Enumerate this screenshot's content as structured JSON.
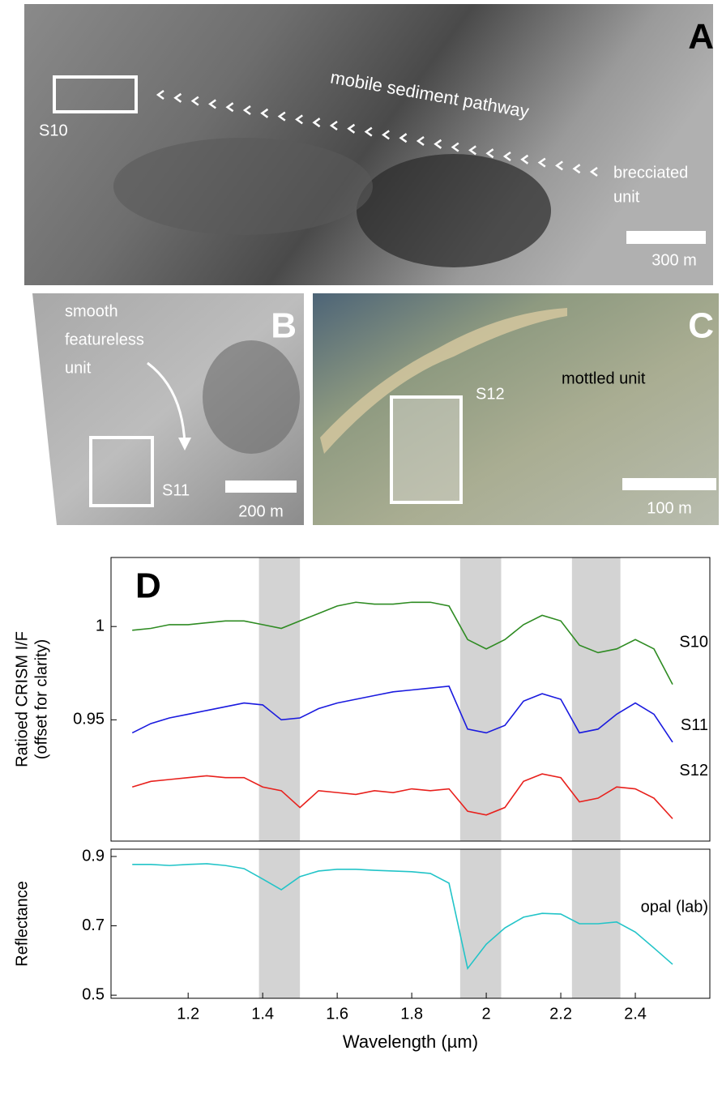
{
  "panels": {
    "a": {
      "letter": "A",
      "pathway": "mobile sediment pathway",
      "site": "S10",
      "unit": [
        "brecciated",
        "unit"
      ],
      "scale": "300 m"
    },
    "b": {
      "letter": "B",
      "unit": [
        "smooth",
        "featureless",
        "unit"
      ],
      "site": "S11",
      "scale": "200 m"
    },
    "c": {
      "letter": "C",
      "site": "S12",
      "unit": "mottled unit",
      "scale": "100 m"
    }
  },
  "chart_data": [
    {
      "type": "line",
      "panel_label": "D",
      "ylabel": [
        "Ratioed CRISM I/F",
        "(offset for clarity)"
      ],
      "x": [
        1.05,
        1.1,
        1.15,
        1.2,
        1.25,
        1.3,
        1.35,
        1.4,
        1.45,
        1.5,
        1.55,
        1.6,
        1.65,
        1.7,
        1.75,
        1.8,
        1.85,
        1.9,
        1.95,
        2.0,
        2.05,
        2.1,
        2.15,
        2.2,
        2.25,
        2.3,
        2.35,
        2.4,
        2.45,
        2.5
      ],
      "series": [
        {
          "name": "S10",
          "color": "#2e8b22",
          "values": [
            0.998,
            0.999,
            1.001,
            1.001,
            1.002,
            1.003,
            1.003,
            1.001,
            0.999,
            1.003,
            1.007,
            1.011,
            1.013,
            1.012,
            1.012,
            1.013,
            1.013,
            1.011,
            0.993,
            0.988,
            0.993,
            1.001,
            1.006,
            1.003,
            0.99,
            0.986,
            0.988,
            0.993,
            0.988,
            0.969
          ]
        },
        {
          "name": "S11",
          "color": "#1a1adf",
          "values": [
            0.943,
            0.948,
            0.951,
            0.953,
            0.955,
            0.957,
            0.959,
            0.958,
            0.95,
            0.951,
            0.956,
            0.959,
            0.961,
            0.963,
            0.965,
            0.966,
            0.967,
            0.968,
            0.945,
            0.943,
            0.947,
            0.96,
            0.964,
            0.961,
            0.943,
            0.945,
            0.953,
            0.959,
            0.953,
            0.938
          ]
        },
        {
          "name": "S12",
          "color": "#e8201c",
          "values": [
            0.914,
            0.917,
            0.918,
            0.919,
            0.92,
            0.919,
            0.919,
            0.914,
            0.912,
            0.903,
            0.912,
            0.911,
            0.91,
            0.912,
            0.911,
            0.913,
            0.912,
            0.913,
            0.901,
            0.899,
            0.903,
            0.917,
            0.921,
            0.919,
            0.906,
            0.908,
            0.914,
            0.913,
            0.908,
            0.897
          ]
        }
      ],
      "bands": [
        [
          1.39,
          1.5
        ],
        [
          1.93,
          2.04
        ],
        [
          2.23,
          2.36
        ]
      ],
      "xlim": [
        0.993,
        2.6
      ],
      "ylim": [
        0.885,
        1.037
      ],
      "yticks": [
        0.95,
        1
      ]
    },
    {
      "type": "line",
      "ylabel": [
        "Reflectance"
      ],
      "xlabel": "Wavelength (µm)",
      "x": [
        1.05,
        1.1,
        1.15,
        1.2,
        1.25,
        1.3,
        1.35,
        1.4,
        1.45,
        1.5,
        1.55,
        1.6,
        1.65,
        1.7,
        1.75,
        1.8,
        1.85,
        1.9,
        1.95,
        2.0,
        2.05,
        2.1,
        2.15,
        2.2,
        2.25,
        2.3,
        2.35,
        2.4,
        2.45,
        2.5
      ],
      "series": [
        {
          "name": "opal (lab)",
          "color": "#22c4c8",
          "values": [
            0.877,
            0.877,
            0.874,
            0.877,
            0.879,
            0.874,
            0.865,
            0.835,
            0.804,
            0.842,
            0.858,
            0.863,
            0.863,
            0.86,
            0.858,
            0.856,
            0.851,
            0.823,
            0.577,
            0.647,
            0.694,
            0.725,
            0.736,
            0.734,
            0.706,
            0.706,
            0.711,
            0.682,
            0.636,
            0.589
          ]
        }
      ],
      "bands": [
        [
          1.39,
          1.5
        ],
        [
          1.93,
          2.04
        ],
        [
          2.23,
          2.36
        ]
      ],
      "xlim": [
        0.993,
        2.6
      ],
      "ylim": [
        0.491,
        0.921
      ],
      "yticks": [
        0.5,
        0.7,
        0.9
      ],
      "xticks": [
        1.2,
        1.4,
        1.6,
        1.8,
        2,
        2.2,
        2.4
      ]
    }
  ]
}
